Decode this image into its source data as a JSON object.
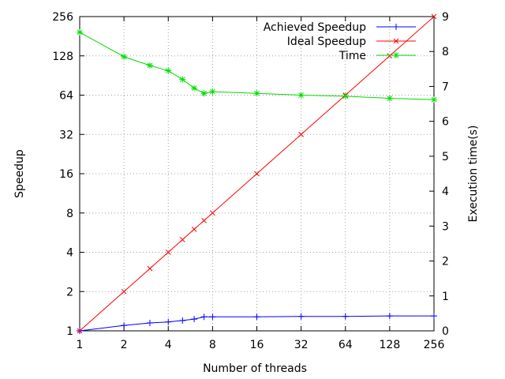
{
  "chart_data": {
    "type": "line",
    "title": "",
    "xlabel": "Number of threads",
    "ylabel": "Speedup",
    "y2label": "Execution time(s)",
    "x_scale": "log2",
    "y_scale": "log2",
    "xlim": [
      1,
      256
    ],
    "ylim": [
      1,
      256
    ],
    "y2lim": [
      0,
      9
    ],
    "x_ticks": [
      "1",
      "2",
      "4",
      "8",
      "16",
      "32",
      "64",
      "128",
      "256"
    ],
    "y_ticks": [
      "1",
      "2",
      "4",
      "8",
      "16",
      "32",
      "64",
      "128",
      "256"
    ],
    "y2_ticks": [
      "0",
      "1",
      "2",
      "3",
      "4",
      "5",
      "6",
      "7",
      "8",
      "9"
    ],
    "grid": true,
    "legend_position": "top-right",
    "series": [
      {
        "name": "Achieved Speedup",
        "axis": "y",
        "color": "#0000ff",
        "marker": "plus",
        "x": [
          1,
          2,
          3,
          4,
          5,
          6,
          7,
          8,
          16,
          32,
          64,
          128,
          256
        ],
        "y": [
          1,
          1.1,
          1.15,
          1.17,
          1.2,
          1.23,
          1.28,
          1.28,
          1.28,
          1.29,
          1.29,
          1.3,
          1.3
        ]
      },
      {
        "name": "Ideal Speedup",
        "axis": "y",
        "color": "#ff0000",
        "marker": "cross",
        "x": [
          1,
          2,
          3,
          4,
          5,
          6,
          7,
          8,
          16,
          32,
          64,
          128,
          256
        ],
        "y": [
          1,
          2,
          3,
          4,
          5,
          6,
          7,
          8,
          16,
          32,
          64,
          128,
          256
        ]
      },
      {
        "name": "Time",
        "axis": "y2",
        "color": "#00dd00",
        "marker": "star",
        "x": [
          1,
          2,
          3,
          4,
          5,
          6,
          7,
          8,
          16,
          32,
          64,
          128,
          256
        ],
        "y": [
          8.55,
          7.85,
          7.6,
          7.45,
          7.2,
          6.95,
          6.8,
          6.85,
          6.8,
          6.75,
          6.72,
          6.66,
          6.62
        ]
      }
    ]
  }
}
